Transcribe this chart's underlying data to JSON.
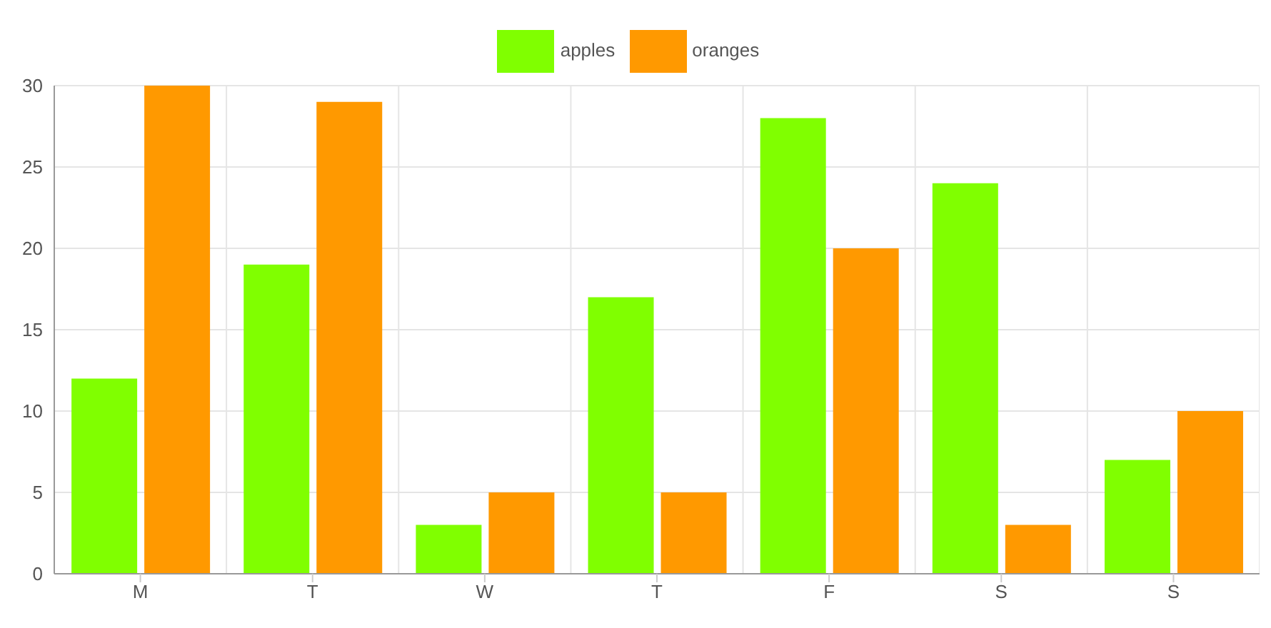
{
  "chart_data": {
    "type": "bar",
    "categories": [
      "M",
      "T",
      "W",
      "T",
      "F",
      "S",
      "S"
    ],
    "series": [
      {
        "name": "apples",
        "color": "#80ff00",
        "values": [
          12,
          19,
          3,
          17,
          28,
          24,
          7
        ]
      },
      {
        "name": "oranges",
        "color": "#ff9900",
        "values": [
          30,
          29,
          5,
          5,
          20,
          3,
          10
        ]
      }
    ],
    "ylim": [
      0,
      30
    ],
    "yticks": [
      0,
      5,
      10,
      15,
      20,
      25,
      30
    ],
    "grid": true,
    "legend": "top"
  }
}
